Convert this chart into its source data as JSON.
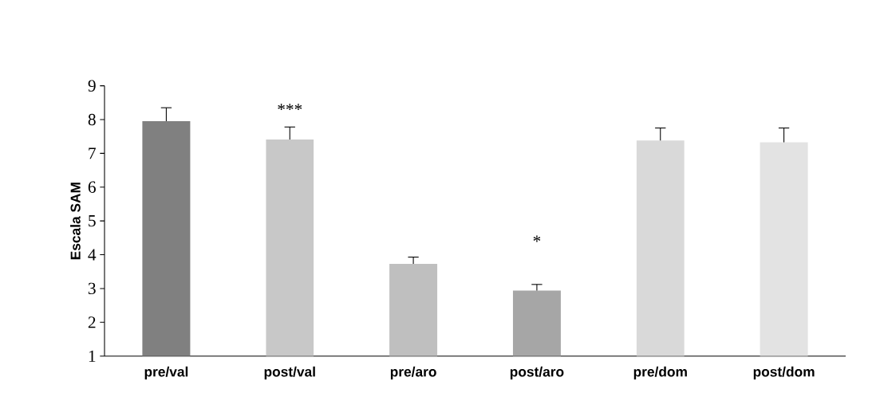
{
  "chart_data": {
    "type": "bar",
    "ylabel": "Escala SAM",
    "categories": [
      "pre/val",
      "post/val",
      "pre/aro",
      "post/aro",
      "pre/dom",
      "post/dom"
    ],
    "values": [
      7.95,
      7.41,
      3.73,
      2.94,
      7.38,
      7.33
    ],
    "errors": [
      0.4,
      0.37,
      0.2,
      0.18,
      0.37,
      0.42
    ],
    "colors": [
      "#808080",
      "#c8c8c8",
      "#bfbfbf",
      "#a6a6a6",
      "#d9d9d9",
      "#e3e3e3"
    ],
    "ylim": [
      1,
      9
    ],
    "yticks": [
      1,
      2,
      3,
      4,
      5,
      6,
      7,
      8,
      9
    ],
    "grid": false,
    "annotations": [
      "***",
      "*"
    ]
  }
}
